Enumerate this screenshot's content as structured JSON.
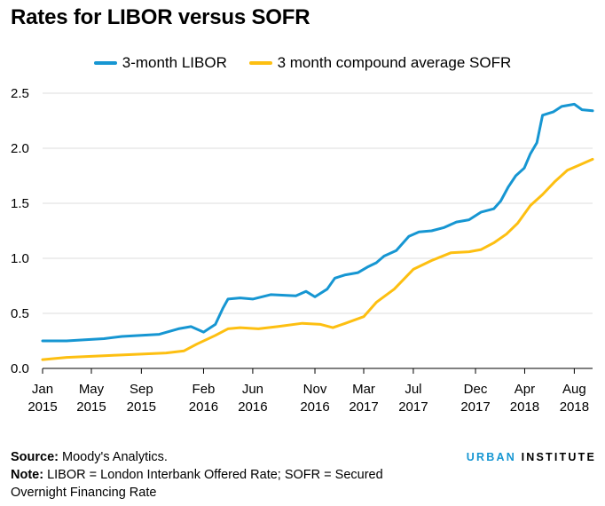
{
  "title": "Rates for LIBOR versus SOFR",
  "colors": {
    "libor": "#1696d2",
    "sofr": "#fdbf11",
    "grid": "#dedede",
    "axis": "#000000"
  },
  "chart_data": {
    "type": "line",
    "title": "Rates for LIBOR versus SOFR",
    "xlabel": "",
    "ylabel": "",
    "ylim": [
      0,
      2.5
    ],
    "yticks": [
      "0.0",
      "0.5",
      "1.0",
      "1.5",
      "2.0",
      "2.5"
    ],
    "x_range": [
      "2015-01-01",
      "2018-09-15"
    ],
    "xticks": [
      {
        "date": "2015-01-01",
        "line1": "Jan",
        "line2": "2015"
      },
      {
        "date": "2015-05-01",
        "line1": "May",
        "line2": "2015"
      },
      {
        "date": "2015-09-01",
        "line1": "Sep",
        "line2": "2015"
      },
      {
        "date": "2016-02-01",
        "line1": "Feb",
        "line2": "2016"
      },
      {
        "date": "2016-06-01",
        "line1": "Jun",
        "line2": "2016"
      },
      {
        "date": "2016-11-01",
        "line1": "Nov",
        "line2": "2016"
      },
      {
        "date": "2017-03-01",
        "line1": "Mar",
        "line2": "2017"
      },
      {
        "date": "2017-07-01",
        "line1": "Jul",
        "line2": "2017"
      },
      {
        "date": "2017-12-01",
        "line1": "Dec",
        "line2": "2017"
      },
      {
        "date": "2018-04-01",
        "line1": "Apr",
        "line2": "2018"
      },
      {
        "date": "2018-08-01",
        "line1": "Aug",
        "line2": "2018"
      }
    ],
    "grid": true,
    "legend_position": "top",
    "series": [
      {
        "name": "3-month LIBOR",
        "color_key": "libor",
        "points": [
          [
            "2015-01-01",
            0.25
          ],
          [
            "2015-03-01",
            0.25
          ],
          [
            "2015-04-15",
            0.26
          ],
          [
            "2015-06-01",
            0.27
          ],
          [
            "2015-07-15",
            0.29
          ],
          [
            "2015-09-01",
            0.3
          ],
          [
            "2015-10-15",
            0.31
          ],
          [
            "2015-12-01",
            0.36
          ],
          [
            "2016-01-01",
            0.38
          ],
          [
            "2016-02-01",
            0.33
          ],
          [
            "2016-03-01",
            0.4
          ],
          [
            "2016-03-20",
            0.55
          ],
          [
            "2016-04-01",
            0.63
          ],
          [
            "2016-05-01",
            0.64
          ],
          [
            "2016-06-01",
            0.63
          ],
          [
            "2016-07-15",
            0.67
          ],
          [
            "2016-09-15",
            0.66
          ],
          [
            "2016-10-10",
            0.7
          ],
          [
            "2016-11-01",
            0.65
          ],
          [
            "2016-12-01",
            0.72
          ],
          [
            "2016-12-20",
            0.82
          ],
          [
            "2017-01-15",
            0.85
          ],
          [
            "2017-02-15",
            0.87
          ],
          [
            "2017-03-10",
            0.92
          ],
          [
            "2017-04-01",
            0.96
          ],
          [
            "2017-04-20",
            1.02
          ],
          [
            "2017-05-20",
            1.07
          ],
          [
            "2017-06-20",
            1.2
          ],
          [
            "2017-07-15",
            1.24
          ],
          [
            "2017-08-15",
            1.25
          ],
          [
            "2017-09-15",
            1.28
          ],
          [
            "2017-10-15",
            1.33
          ],
          [
            "2017-11-15",
            1.35
          ],
          [
            "2017-12-15",
            1.42
          ],
          [
            "2018-01-15",
            1.45
          ],
          [
            "2018-02-01",
            1.52
          ],
          [
            "2018-02-20",
            1.65
          ],
          [
            "2018-03-10",
            1.75
          ],
          [
            "2018-03-31",
            1.82
          ],
          [
            "2018-04-15",
            1.95
          ],
          [
            "2018-05-01",
            2.05
          ],
          [
            "2018-05-15",
            2.3
          ],
          [
            "2018-06-10",
            2.33
          ],
          [
            "2018-07-01",
            2.38
          ],
          [
            "2018-08-01",
            2.4
          ],
          [
            "2018-08-20",
            2.35
          ],
          [
            "2018-09-15",
            2.34
          ]
        ]
      },
      {
        "name": "3 month compound average SOFR",
        "color_key": "sofr",
        "points": [
          [
            "2015-01-01",
            0.08
          ],
          [
            "2015-03-01",
            0.1
          ],
          [
            "2015-05-01",
            0.11
          ],
          [
            "2015-07-01",
            0.12
          ],
          [
            "2015-09-01",
            0.13
          ],
          [
            "2015-11-01",
            0.14
          ],
          [
            "2015-12-15",
            0.16
          ],
          [
            "2016-01-15",
            0.22
          ],
          [
            "2016-03-01",
            0.3
          ],
          [
            "2016-04-01",
            0.36
          ],
          [
            "2016-05-01",
            0.37
          ],
          [
            "2016-06-15",
            0.36
          ],
          [
            "2016-08-01",
            0.38
          ],
          [
            "2016-10-01",
            0.41
          ],
          [
            "2016-11-15",
            0.4
          ],
          [
            "2016-12-15",
            0.37
          ],
          [
            "2017-01-15",
            0.41
          ],
          [
            "2017-03-01",
            0.47
          ],
          [
            "2017-04-01",
            0.6
          ],
          [
            "2017-05-15",
            0.72
          ],
          [
            "2017-07-01",
            0.9
          ],
          [
            "2017-08-15",
            0.98
          ],
          [
            "2017-10-01",
            1.05
          ],
          [
            "2017-11-15",
            1.06
          ],
          [
            "2017-12-15",
            1.08
          ],
          [
            "2018-01-15",
            1.14
          ],
          [
            "2018-02-15",
            1.22
          ],
          [
            "2018-03-15",
            1.32
          ],
          [
            "2018-04-15",
            1.48
          ],
          [
            "2018-05-15",
            1.58
          ],
          [
            "2018-06-15",
            1.7
          ],
          [
            "2018-07-15",
            1.8
          ],
          [
            "2018-08-15",
            1.85
          ],
          [
            "2018-09-15",
            1.9
          ]
        ]
      }
    ]
  },
  "footer": {
    "source_label": "Source:",
    "source_text": " Moody's Analytics.",
    "note_label": "Note:",
    "note_line1": " LIBOR = London Interbank Offered Rate; SOFR = Secured",
    "note_line2": "Overnight Financing Rate"
  },
  "brand": {
    "part1": "URBAN",
    "part2": " INSTITUTE"
  }
}
